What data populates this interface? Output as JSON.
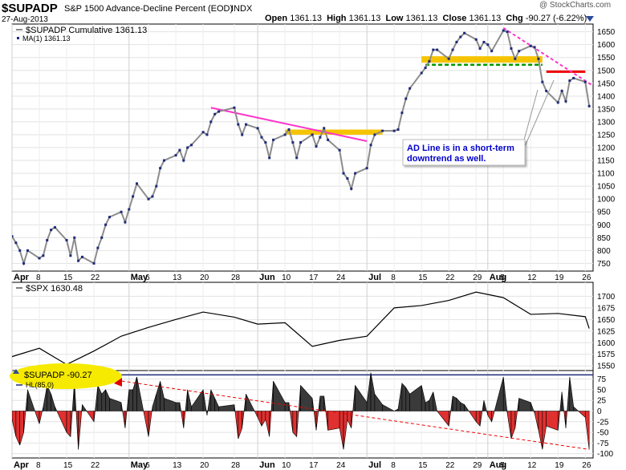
{
  "header": {
    "symbol": "$SUPADP",
    "name": "S&P 1500 Advance-Decline Percent (EOD)",
    "exchange": "INDX",
    "date": "27-Aug-2013",
    "watermark": "@ StockCharts.com",
    "ohlc": {
      "open_label": "Open",
      "open": "1361.13",
      "high_label": "High",
      "high": "1361.13",
      "low_label": "Low",
      "low": "1361.13",
      "close_label": "Close",
      "close": "1361.13",
      "chg_label": "Chg",
      "chg": "-90.27 (-6.22%)"
    },
    "chg_arrow_icon": "triangle-down-icon"
  },
  "legends": {
    "main_series": "$SUPADP  Cumulative 1361.13",
    "ma": "MA(1) 1361.13",
    "spx": "$SPX  1630.48",
    "indicator": "$SUPADP  -90.27",
    "hl": "HL(85.0)"
  },
  "callout": {
    "line1": "AD Line is in a short-term",
    "line2": "downtrend as well."
  },
  "x_axis": {
    "months": [
      "Apr",
      "May",
      "Jun",
      "Jul",
      "Aug"
    ],
    "days": [
      "8",
      "15",
      "22",
      "6",
      "13",
      "20",
      "28",
      "10",
      "17",
      "24",
      "8",
      "15",
      "22",
      "29",
      "5",
      "12",
      "19",
      "26"
    ]
  },
  "colors": {
    "cumulative_line": "#8c8c8c",
    "markers": "#1f2a7a",
    "spx_line": "#000000",
    "positive_fill": "#3a3a3a",
    "negative_fill": "#e03030",
    "highlight": "#f5c400",
    "trendline": "#ff33cc",
    "resistance": "#ee0000",
    "support_dashed": "#009900",
    "callout_text": "#0000cc",
    "callout_bg": "#ffffff"
  },
  "chart_data": [
    {
      "type": "line",
      "title": "$SUPADP Cumulative",
      "x": [
        "2013-04-01",
        "2013-04-02",
        "2013-04-03",
        "2013-04-04",
        "2013-04-05",
        "2013-04-08",
        "2013-04-09",
        "2013-04-10",
        "2013-04-11",
        "2013-04-12",
        "2013-04-15",
        "2013-04-16",
        "2013-04-17",
        "2013-04-18",
        "2013-04-19",
        "2013-04-22",
        "2013-04-23",
        "2013-04-24",
        "2013-04-25",
        "2013-04-26",
        "2013-04-29",
        "2013-04-30",
        "2013-05-01",
        "2013-05-02",
        "2013-05-03",
        "2013-05-06",
        "2013-05-07",
        "2013-05-08",
        "2013-05-09",
        "2013-05-10",
        "2013-05-13",
        "2013-05-14",
        "2013-05-15",
        "2013-05-16",
        "2013-05-17",
        "2013-05-20",
        "2013-05-21",
        "2013-05-22",
        "2013-05-23",
        "2013-05-24",
        "2013-05-28",
        "2013-05-29",
        "2013-05-30",
        "2013-05-31",
        "2013-06-03",
        "2013-06-04",
        "2013-06-05",
        "2013-06-06",
        "2013-06-07",
        "2013-06-10",
        "2013-06-11",
        "2013-06-12",
        "2013-06-13",
        "2013-06-14",
        "2013-06-17",
        "2013-06-18",
        "2013-06-19",
        "2013-06-20",
        "2013-06-21",
        "2013-06-24",
        "2013-06-25",
        "2013-06-26",
        "2013-06-27",
        "2013-06-28",
        "2013-07-01",
        "2013-07-02",
        "2013-07-03",
        "2013-07-05",
        "2013-07-08",
        "2013-07-09",
        "2013-07-10",
        "2013-07-11",
        "2013-07-12",
        "2013-07-15",
        "2013-07-16",
        "2013-07-17",
        "2013-07-18",
        "2013-07-19",
        "2013-07-22",
        "2013-07-23",
        "2013-07-24",
        "2013-07-25",
        "2013-07-26",
        "2013-07-29",
        "2013-07-30",
        "2013-07-31",
        "2013-08-01",
        "2013-08-02",
        "2013-08-05",
        "2013-08-06",
        "2013-08-07",
        "2013-08-08",
        "2013-08-09",
        "2013-08-12",
        "2013-08-13",
        "2013-08-14",
        "2013-08-15",
        "2013-08-16",
        "2013-08-19",
        "2013-08-20",
        "2013-08-21",
        "2013-08-22",
        "2013-08-23",
        "2013-08-26",
        "2013-08-27"
      ],
      "values": [
        855,
        830,
        800,
        750,
        800,
        770,
        780,
        840,
        880,
        890,
        840,
        780,
        850,
        760,
        775,
        750,
        810,
        850,
        900,
        930,
        950,
        910,
        960,
        1010,
        1060,
        1000,
        1010,
        1050,
        1120,
        1150,
        1170,
        1190,
        1150,
        1200,
        1210,
        1260,
        1250,
        1300,
        1330,
        1340,
        1355,
        1290,
        1250,
        1290,
        1275,
        1240,
        1220,
        1160,
        1230,
        1250,
        1270,
        1220,
        1160,
        1220,
        1250,
        1205,
        1240,
        1275,
        1230,
        1190,
        1100,
        1080,
        1040,
        1100,
        1120,
        1210,
        1250,
        1265,
        1265,
        1270,
        1335,
        1390,
        1430,
        1490,
        1510,
        1535,
        1580,
        1580,
        1545,
        1580,
        1610,
        1630,
        1645,
        1620,
        1585,
        1610,
        1600,
        1575,
        1655,
        1650,
        1585,
        1545,
        1575,
        1595,
        1590,
        1545,
        1455,
        1420,
        1375,
        1420,
        1380,
        1460,
        1470,
        1455,
        1361
      ],
      "ylabel": "",
      "ylim": [
        720,
        1680
      ],
      "yticks": [
        750,
        800,
        850,
        900,
        950,
        1000,
        1050,
        1100,
        1150,
        1200,
        1250,
        1300,
        1350,
        1400,
        1450,
        1500,
        1550,
        1600,
        1650
      ],
      "grid": true,
      "legend": "top-left",
      "annotations": {
        "highlight_zones": [
          {
            "from": "2013-06-10",
            "to": "2013-07-05",
            "y0": 1250,
            "y1": 1270
          },
          {
            "from": "2013-07-15",
            "to": "2013-08-15",
            "y0": 1530,
            "y1": 1555
          }
        ],
        "trendlines": [
          {
            "from": [
              "2013-05-22",
              1355
            ],
            "to": [
              "2013-07-01",
              1225
            ]
          },
          {
            "from": [
              "2013-08-05",
              1665
            ],
            "to": [
              "2013-08-28",
              1440
            ]
          }
        ],
        "resistance": {
          "from": "2013-08-16",
          "to": "2013-08-26",
          "y": 1495
        },
        "support": {
          "from": "2013-07-16",
          "to": "2013-08-15",
          "y": 1522
        }
      }
    },
    {
      "type": "line",
      "title": "$SPX",
      "x": [
        "2013-04-01",
        "2013-04-08",
        "2013-04-15",
        "2013-04-22",
        "2013-04-29",
        "2013-05-06",
        "2013-05-13",
        "2013-05-20",
        "2013-05-28",
        "2013-06-03",
        "2013-06-10",
        "2013-06-17",
        "2013-06-24",
        "2013-07-01",
        "2013-07-08",
        "2013-07-15",
        "2013-07-22",
        "2013-07-29",
        "2013-08-05",
        "2013-08-12",
        "2013-08-19",
        "2013-08-26",
        "2013-08-27"
      ],
      "values": [
        1570,
        1588,
        1553,
        1582,
        1614,
        1633,
        1650,
        1666,
        1655,
        1640,
        1643,
        1592,
        1605,
        1614,
        1675,
        1680,
        1691,
        1709,
        1697,
        1661,
        1663,
        1656,
        1630.48
      ],
      "ylim": [
        1540,
        1730
      ],
      "yticks": [
        1550,
        1575,
        1600,
        1625,
        1650,
        1675,
        1700
      ],
      "grid": true
    },
    {
      "type": "bar",
      "title": "$SUPADP",
      "values": [
        -20,
        -60,
        -80,
        -50,
        50,
        -30,
        10,
        60,
        40,
        10,
        -50,
        -60,
        70,
        -90,
        15,
        -25,
        60,
        40,
        50,
        30,
        20,
        -40,
        50,
        50,
        80,
        -60,
        10,
        40,
        70,
        30,
        20,
        20,
        -40,
        50,
        10,
        50,
        -10,
        50,
        30,
        10,
        15,
        -65,
        -40,
        40,
        -15,
        -35,
        -20,
        -60,
        70,
        20,
        20,
        -50,
        -60,
        60,
        30,
        -45,
        35,
        35,
        -45,
        -40,
        -90,
        -20,
        -40,
        60,
        20,
        90,
        40,
        15,
        0,
        5,
        65,
        55,
        40,
        60,
        20,
        25,
        45,
        0,
        -35,
        35,
        30,
        20,
        15,
        -25,
        -35,
        25,
        -10,
        -25,
        80,
        -5,
        -65,
        -40,
        30,
        20,
        -5,
        -45,
        -90,
        -35,
        -45,
        45,
        -40,
        80,
        10,
        -15,
        -90
      ],
      "ylim": [
        -110,
        95
      ],
      "yticks": [
        -100,
        -75,
        -50,
        -25,
        0,
        25,
        50,
        75
      ],
      "threshold_line": 85.0,
      "annotations": {
        "trendline": {
          "from": "2013-04-22",
          "to": "2013-08-27",
          "y0": 80,
          "y1": -90
        }
      }
    }
  ]
}
